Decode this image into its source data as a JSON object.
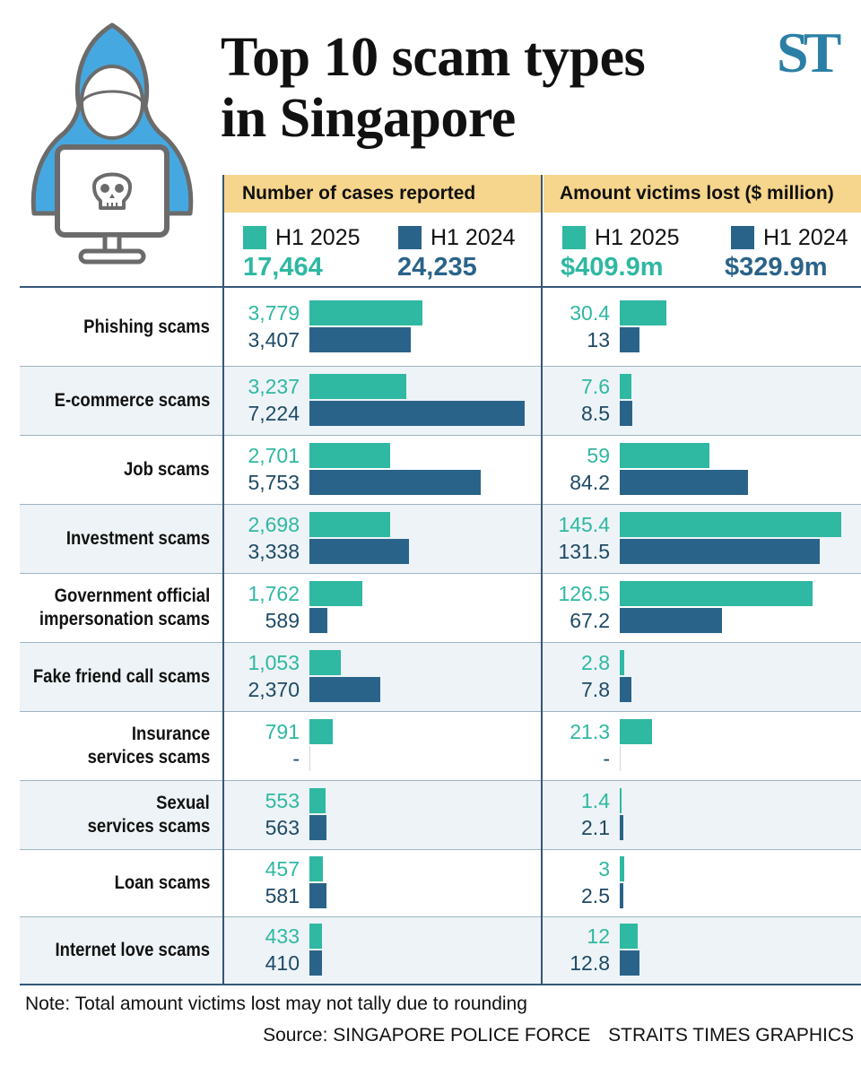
{
  "title_lines": [
    "Top 10 scam types",
    "in Singapore"
  ],
  "logo": "ST",
  "colors": {
    "h1_2025": "#2fb8a2",
    "h1_2024": "#2a6389",
    "header_bg": "#f6d58c",
    "row_alt": "#edf3f6",
    "line": "#35577a"
  },
  "icons": [
    "hooded-hacker-icon",
    "skull-icon",
    "computer-monitor-icon"
  ],
  "panels": {
    "cases": {
      "header": "Number of cases reported",
      "legend_2025": "H1 2025",
      "legend_2024": "H1 2024",
      "total_2025": "17,464",
      "total_2024": "24,235"
    },
    "amount": {
      "header": "Amount victims lost ($ million)",
      "legend_2025": "H1 2025",
      "legend_2024": "H1 2024",
      "total_2025": "$409.9m",
      "total_2024": "$329.9m"
    }
  },
  "chart_data": [
    {
      "type": "bar",
      "orientation": "horizontal",
      "title": "Number of cases reported",
      "categories": [
        "Phishing scams",
        "E-commerce scams",
        "Job scams",
        "Investment scams",
        "Government official impersonation scams",
        "Fake friend call scams",
        "Insurance services scams",
        "Sexual services scams",
        "Loan scams",
        "Internet love scams"
      ],
      "series": [
        {
          "name": "H1 2025",
          "values": [
            3779,
            3237,
            2701,
            2698,
            1762,
            1053,
            791,
            553,
            457,
            433
          ],
          "labels": [
            "3,779",
            "3,237",
            "2,701",
            "2,698",
            "1,762",
            "1,053",
            "791",
            "553",
            "457",
            "433"
          ]
        },
        {
          "name": "H1 2024",
          "values": [
            3407,
            7224,
            5753,
            3338,
            589,
            2370,
            null,
            563,
            581,
            410
          ],
          "labels": [
            "3,407",
            "7,224",
            "5,753",
            "3,338",
            "589",
            "2,370",
            "-",
            "563",
            "581",
            "410"
          ]
        }
      ],
      "totals": {
        "H1 2025": "17,464",
        "H1 2024": "24,235"
      }
    },
    {
      "type": "bar",
      "orientation": "horizontal",
      "title": "Amount victims lost ($ million)",
      "categories": [
        "Phishing scams",
        "E-commerce scams",
        "Job scams",
        "Investment scams",
        "Government official impersonation scams",
        "Fake friend call scams",
        "Insurance services scams",
        "Sexual services scams",
        "Loan scams",
        "Internet love scams"
      ],
      "series": [
        {
          "name": "H1 2025",
          "values": [
            30.4,
            7.6,
            59,
            145.4,
            126.5,
            2.8,
            21.3,
            1.4,
            3,
            12
          ],
          "labels": [
            "30.4",
            "7.6",
            "59",
            "145.4",
            "126.5",
            "2.8",
            "21.3",
            "1.4",
            "3",
            "12"
          ]
        },
        {
          "name": "H1 2024",
          "values": [
            13,
            8.5,
            84.2,
            131.5,
            67.2,
            7.8,
            null,
            2.1,
            2.5,
            12.8
          ],
          "labels": [
            "13",
            "8.5",
            "84.2",
            "131.5",
            "67.2",
            "7.8",
            "-",
            "2.1",
            "2.5",
            "12.8"
          ]
        }
      ],
      "totals": {
        "H1 2025": "$409.9m",
        "H1 2024": "$329.9m"
      }
    }
  ],
  "category_lines": [
    [
      "Phishing scams"
    ],
    [
      "E-commerce scams"
    ],
    [
      "Job scams"
    ],
    [
      "Investment scams"
    ],
    [
      "Government official",
      "impersonation scams"
    ],
    [
      "Fake friend call scams"
    ],
    [
      "Insurance",
      "services scams"
    ],
    [
      "Sexual",
      "services scams"
    ],
    [
      "Loan scams"
    ],
    [
      "Internet love scams"
    ]
  ],
  "note": "Note: Total amount victims lost may not tally due to rounding",
  "source": "Source: SINGAPORE POLICE FORCE",
  "credit": "STRAITS TIMES GRAPHICS"
}
